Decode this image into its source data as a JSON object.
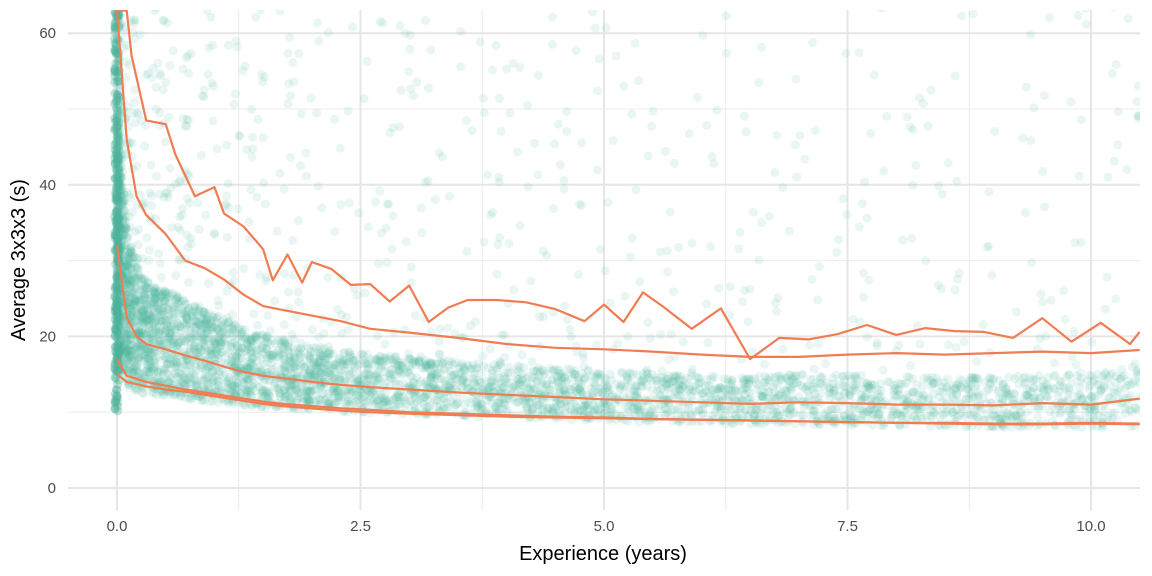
{
  "chart_data": {
    "type": "scatter",
    "title": "",
    "xlabel": "Experience (years)",
    "ylabel": "Average 3x3x3 (s)",
    "xlim": [
      -0.9,
      10.5
    ],
    "ylim": [
      -3,
      63
    ],
    "x_ticks": [
      0,
      2.5,
      5,
      7.5,
      10
    ],
    "x_tick_labels": [
      "0.0",
      "2.5",
      "5.0",
      "7.5",
      "10.0"
    ],
    "y_ticks": [
      0,
      20,
      40,
      60
    ],
    "y_tick_labels": [
      "0",
      "20",
      "40",
      "60"
    ],
    "grid": true,
    "legend": "none",
    "colors": {
      "points": "#4db39b",
      "lines": "#f07c52",
      "grid": "#e6e6e6"
    },
    "scatter": {
      "description_free": true,
      "x_range": [
        0,
        10.5
      ],
      "spread_by_x": [
        {
          "x": 0.0,
          "low": 9.5,
          "high": 63
        },
        {
          "x": 0.5,
          "low": 9.5,
          "high": 63
        },
        {
          "x": 1.0,
          "low": 9.0,
          "high": 63
        },
        {
          "x": 2.5,
          "low": 8.5,
          "high": 63
        },
        {
          "x": 5.0,
          "low": 7.5,
          "high": 63
        },
        {
          "x": 7.5,
          "low": 7.0,
          "high": 63
        },
        {
          "x": 10.5,
          "low": 6.5,
          "high": 63
        }
      ]
    },
    "series": [
      {
        "x": [
          0.0,
          0.1,
          0.2,
          0.3,
          0.5,
          0.7,
          0.9,
          1.1,
          1.3,
          1.5,
          1.7,
          2.0,
          2.3,
          2.6,
          3.0,
          3.5,
          4.0,
          4.5,
          5.0,
          5.5,
          6.0,
          6.5,
          7.0,
          7.5,
          8.0,
          8.5,
          9.0,
          9.5,
          10.0,
          10.5
        ],
        "y": [
          15.0,
          14.0,
          13.7,
          13.4,
          13.0,
          12.7,
          12.3,
          11.9,
          11.5,
          11.1,
          10.8,
          10.5,
          10.2,
          10.0,
          9.8,
          9.6,
          9.4,
          9.3,
          9.2,
          9.1,
          9.0,
          8.9,
          8.8,
          8.7,
          8.6,
          8.6,
          8.5,
          8.5,
          8.6,
          8.5
        ]
      },
      {
        "x": [
          0.0,
          0.1,
          0.2,
          0.3,
          0.5,
          0.7,
          0.9,
          1.1,
          1.3,
          1.5,
          1.7,
          2.0,
          2.3,
          2.6,
          3.0,
          3.5,
          4.0,
          4.5,
          5.0,
          5.5,
          6.0,
          6.5,
          7.0,
          7.5,
          8.0,
          8.5,
          9.0,
          9.5,
          10.0,
          10.5
        ],
        "y": [
          17.0,
          14.8,
          14.4,
          14.0,
          13.5,
          13.0,
          12.6,
          12.2,
          11.8,
          11.4,
          11.1,
          10.8,
          10.5,
          10.3,
          10.0,
          9.8,
          9.6,
          9.4,
          9.3,
          9.1,
          9.0,
          8.9,
          8.8,
          8.7,
          8.6,
          8.5,
          8.4,
          8.4,
          8.5,
          8.4
        ]
      },
      {
        "x": [
          0.0,
          0.1,
          0.2,
          0.3,
          0.5,
          0.7,
          0.9,
          1.1,
          1.3,
          1.5,
          1.7,
          2.0,
          2.3,
          2.6,
          3.0,
          3.5,
          4.0,
          4.5,
          5.0,
          5.5,
          6.0,
          6.5,
          7.0,
          7.5,
          8.0,
          8.5,
          9.0,
          9.5,
          10.0,
          10.5
        ],
        "y": [
          32.0,
          22.5,
          20.0,
          19.0,
          18.3,
          17.5,
          16.8,
          16.0,
          15.3,
          14.8,
          14.5,
          14.0,
          13.6,
          13.3,
          13.0,
          12.6,
          12.3,
          12.0,
          11.7,
          11.5,
          11.3,
          11.1,
          11.3,
          11.2,
          11.0,
          11.0,
          10.9,
          11.2,
          11.0,
          11.8
        ]
      },
      {
        "x": [
          0.0,
          0.1,
          0.2,
          0.3,
          0.5,
          0.7,
          0.9,
          1.1,
          1.3,
          1.5,
          1.7,
          1.9,
          2.1,
          2.3,
          2.6,
          3.0,
          3.5,
          4.0,
          4.5,
          5.0,
          5.5,
          6.0,
          6.5,
          7.0,
          7.5,
          8.0,
          8.5,
          9.0,
          9.5,
          10.0,
          10.5
        ],
        "y": [
          63,
          46.0,
          38.5,
          36.0,
          33.5,
          30.0,
          29.0,
          27.5,
          25.5,
          24.0,
          23.5,
          23.0,
          22.5,
          22.0,
          21.0,
          20.5,
          19.8,
          19.0,
          18.5,
          18.3,
          18.0,
          17.6,
          17.3,
          17.3,
          17.6,
          17.8,
          17.6,
          17.8,
          18.0,
          17.8,
          18.2
        ]
      },
      {
        "x": [
          0.0,
          0.1,
          0.15,
          0.3,
          0.5,
          0.6,
          0.8,
          1.0,
          1.1,
          1.3,
          1.5,
          1.6,
          1.75,
          1.9,
          2.0,
          2.2,
          2.4,
          2.6,
          2.8,
          3.0,
          3.2,
          3.4,
          3.6,
          3.9,
          4.2,
          4.5,
          4.8,
          5.0,
          5.2,
          5.4,
          5.6,
          5.9,
          6.2,
          6.5,
          6.8,
          7.1,
          7.4,
          7.7,
          8.0,
          8.3,
          8.6,
          8.9,
          9.2,
          9.5,
          9.8,
          10.1,
          10.4,
          10.5
        ],
        "y": [
          63,
          63,
          57.0,
          48.5,
          48.0,
          44.0,
          38.5,
          39.7,
          36.2,
          34.5,
          31.5,
          27.4,
          30.8,
          27.1,
          29.8,
          28.9,
          26.8,
          26.9,
          24.6,
          26.7,
          21.9,
          23.8,
          24.8,
          24.8,
          24.5,
          23.6,
          22.0,
          24.2,
          21.9,
          25.8,
          24.0,
          21.0,
          23.7,
          17.0,
          19.8,
          19.6,
          20.3,
          21.5,
          20.2,
          21.1,
          20.7,
          20.6,
          19.8,
          22.4,
          19.3,
          21.8,
          19.0,
          20.6
        ]
      }
    ]
  }
}
